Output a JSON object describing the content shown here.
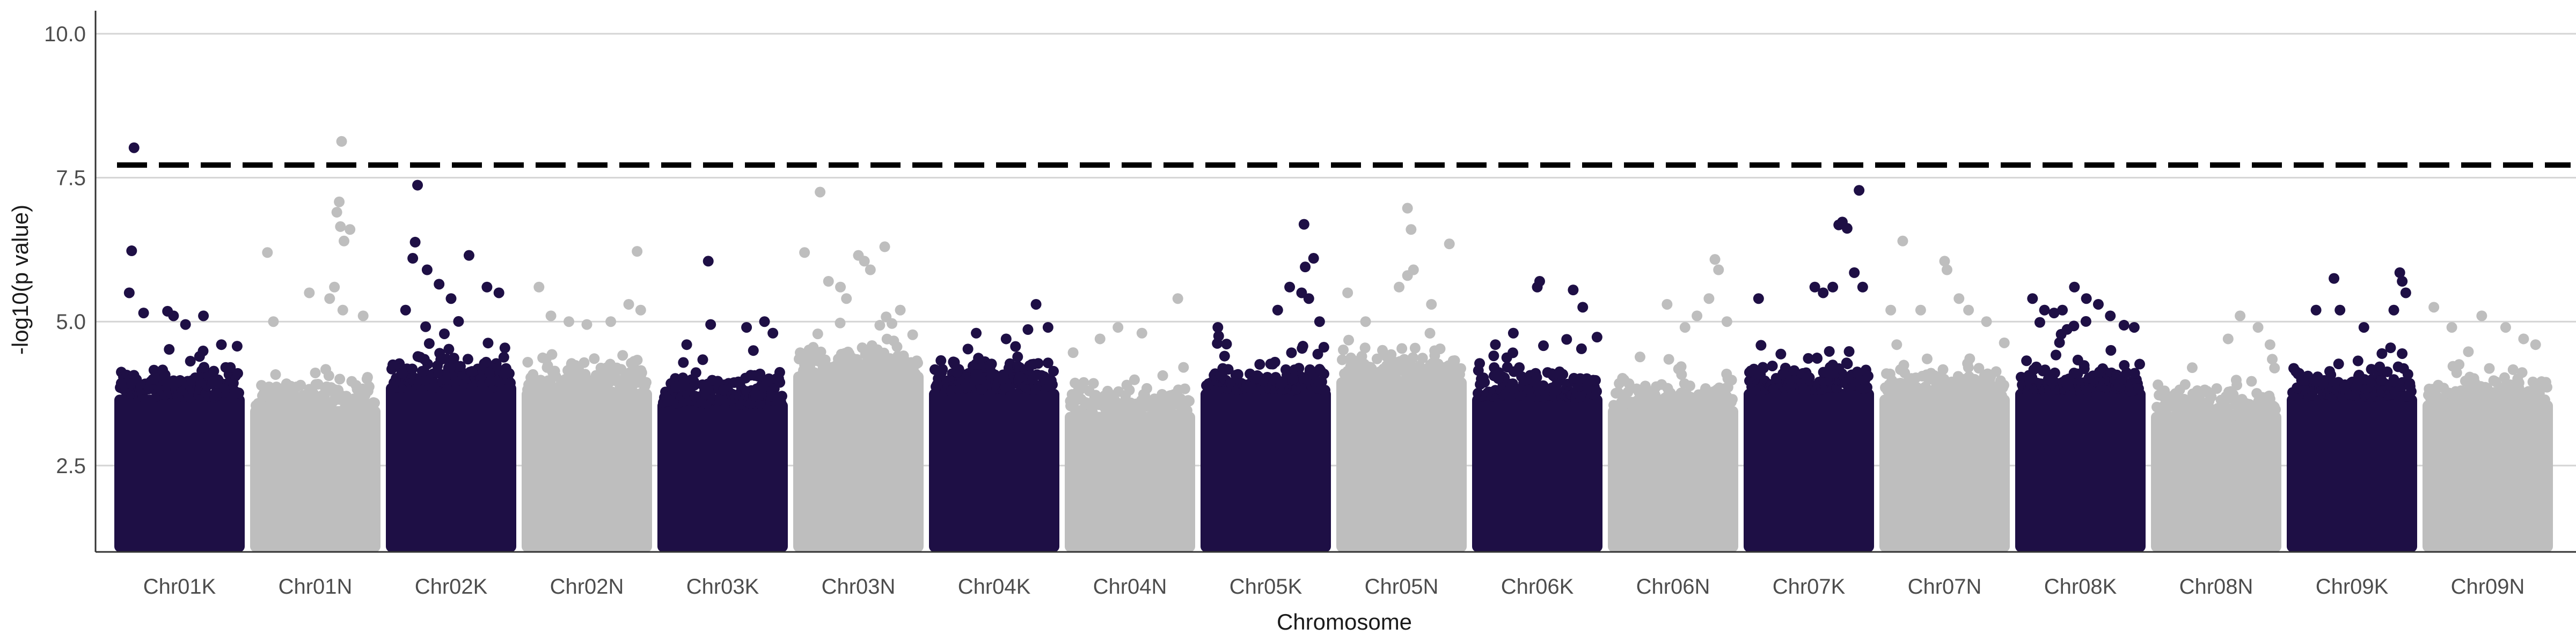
{
  "chart_data": {
    "type": "scatter",
    "subtype": "manhattan",
    "title": "",
    "xlabel": "Chromosome",
    "ylabel": "-log10(p value)",
    "ylim": [
      1.0,
      10.4
    ],
    "yticks": [
      2.5,
      5.0,
      7.5,
      10.0
    ],
    "ytick_labels": [
      "2.5",
      "5.0",
      "7.5",
      "10.0"
    ],
    "grid": "horizontal major lines",
    "legend": "none",
    "threshold": {
      "value": 7.72,
      "style": "dashed",
      "color": "#000000"
    },
    "colors": {
      "odd": "#1e0f45",
      "even": "#bebebe"
    },
    "categories": [
      "Chr01K",
      "Chr01N",
      "Chr02K",
      "Chr02N",
      "Chr03K",
      "Chr03N",
      "Chr04K",
      "Chr04N",
      "Chr05K",
      "Chr05N",
      "Chr06K",
      "Chr06N",
      "Chr07K",
      "Chr07N",
      "Chr08K",
      "Chr08N",
      "Chr09K",
      "Chr09N"
    ],
    "dense_band_top": [
      3.9,
      3.7,
      4.1,
      4.0,
      3.8,
      4.3,
      4.0,
      3.6,
      4.0,
      4.2,
      3.9,
      3.7,
      4.0,
      3.9,
      4.0,
      3.6,
      3.9,
      3.8
    ],
    "series": [
      {
        "name": "Chr01K",
        "points": [
          [
            0.12,
            8.02
          ],
          [
            0.1,
            6.23
          ],
          [
            0.08,
            5.5
          ],
          [
            0.2,
            5.15
          ],
          [
            0.45,
            5.1
          ],
          [
            0.4,
            5.18
          ],
          [
            0.55,
            4.95
          ],
          [
            0.7,
            5.1
          ],
          [
            0.85,
            4.6
          ]
        ]
      },
      {
        "name": "Chr01N",
        "points": [
          [
            0.1,
            6.2
          ],
          [
            0.15,
            5.0
          ],
          [
            0.45,
            5.5
          ],
          [
            0.62,
            5.4
          ],
          [
            0.72,
            8.13
          ],
          [
            0.7,
            7.08
          ],
          [
            0.68,
            6.9
          ],
          [
            0.71,
            6.65
          ],
          [
            0.74,
            6.4
          ],
          [
            0.79,
            6.6
          ],
          [
            0.66,
            5.6
          ],
          [
            0.73,
            5.2
          ],
          [
            0.9,
            5.1
          ]
        ]
      },
      {
        "name": "Chr02K",
        "points": [
          [
            0.22,
            7.37
          ],
          [
            0.2,
            6.38
          ],
          [
            0.18,
            6.1
          ],
          [
            0.3,
            5.9
          ],
          [
            0.4,
            5.65
          ],
          [
            0.65,
            6.15
          ],
          [
            0.8,
            5.6
          ],
          [
            0.9,
            5.5
          ],
          [
            0.5,
            5.4
          ],
          [
            0.12,
            5.2
          ]
        ]
      },
      {
        "name": "Chr02N",
        "points": [
          [
            0.1,
            5.6
          ],
          [
            0.2,
            5.1
          ],
          [
            0.35,
            5.0
          ],
          [
            0.5,
            4.95
          ],
          [
            0.7,
            5.0
          ],
          [
            0.85,
            5.3
          ],
          [
            0.92,
            6.22
          ],
          [
            0.95,
            5.2
          ]
        ]
      },
      {
        "name": "Chr03K",
        "points": [
          [
            0.38,
            6.05
          ],
          [
            0.4,
            4.95
          ],
          [
            0.7,
            4.9
          ],
          [
            0.85,
            5.0
          ],
          [
            0.92,
            4.8
          ],
          [
            0.2,
            4.6
          ]
        ]
      },
      {
        "name": "Chr03N",
        "points": [
          [
            0.05,
            6.2
          ],
          [
            0.18,
            7.25
          ],
          [
            0.25,
            5.7
          ],
          [
            0.35,
            5.6
          ],
          [
            0.5,
            6.15
          ],
          [
            0.55,
            6.05
          ],
          [
            0.6,
            5.9
          ],
          [
            0.72,
            6.3
          ],
          [
            0.85,
            5.2
          ],
          [
            0.4,
            5.4
          ]
        ]
      },
      {
        "name": "Chr04K",
        "points": [
          [
            0.35,
            4.8
          ],
          [
            0.6,
            4.7
          ],
          [
            0.85,
            5.3
          ],
          [
            0.95,
            4.9
          ]
        ]
      },
      {
        "name": "Chr04N",
        "points": [
          [
            0.25,
            4.7
          ],
          [
            0.4,
            4.9
          ],
          [
            0.6,
            4.8
          ],
          [
            0.9,
            5.4
          ]
        ]
      },
      {
        "name": "Chr05K",
        "points": [
          [
            0.1,
            4.9
          ],
          [
            0.6,
            5.2
          ],
          [
            0.7,
            5.6
          ],
          [
            0.8,
            5.5
          ],
          [
            0.82,
            6.69
          ],
          [
            0.83,
            5.95
          ],
          [
            0.86,
            5.4
          ],
          [
            0.9,
            6.1
          ],
          [
            0.95,
            5.0
          ]
        ]
      },
      {
        "name": "Chr05N",
        "points": [
          [
            0.05,
            5.5
          ],
          [
            0.2,
            5.0
          ],
          [
            0.48,
            5.6
          ],
          [
            0.55,
            6.97
          ],
          [
            0.58,
            6.6
          ],
          [
            0.6,
            5.9
          ],
          [
            0.75,
            5.3
          ],
          [
            0.9,
            6.35
          ],
          [
            0.55,
            5.8
          ]
        ]
      },
      {
        "name": "Chr06K",
        "points": [
          [
            0.15,
            4.6
          ],
          [
            0.3,
            4.8
          ],
          [
            0.5,
            5.6
          ],
          [
            0.52,
            5.7
          ],
          [
            0.8,
            5.55
          ],
          [
            0.88,
            5.25
          ]
        ]
      },
      {
        "name": "Chr06N",
        "points": [
          [
            0.45,
            5.3
          ],
          [
            0.6,
            4.9
          ],
          [
            0.7,
            5.1
          ],
          [
            0.8,
            5.4
          ],
          [
            0.85,
            6.08
          ],
          [
            0.88,
            5.9
          ],
          [
            0.95,
            5.0
          ]
        ]
      },
      {
        "name": "Chr07K",
        "points": [
          [
            0.08,
            5.4
          ],
          [
            0.55,
            5.6
          ],
          [
            0.62,
            5.5
          ],
          [
            0.7,
            5.6
          ],
          [
            0.75,
            6.68
          ],
          [
            0.78,
            6.73
          ],
          [
            0.82,
            6.62
          ],
          [
            0.88,
            5.85
          ],
          [
            0.92,
            7.28
          ],
          [
            0.95,
            5.6
          ]
        ]
      },
      {
        "name": "Chr07N",
        "points": [
          [
            0.05,
            5.2
          ],
          [
            0.1,
            4.6
          ],
          [
            0.15,
            6.4
          ],
          [
            0.3,
            5.2
          ],
          [
            0.5,
            6.05
          ],
          [
            0.52,
            5.9
          ],
          [
            0.62,
            5.4
          ],
          [
            0.7,
            5.2
          ],
          [
            0.85,
            5.0
          ]
        ]
      },
      {
        "name": "Chr08K",
        "points": [
          [
            0.1,
            5.4
          ],
          [
            0.2,
            5.2
          ],
          [
            0.28,
            5.15
          ],
          [
            0.35,
            5.2
          ],
          [
            0.45,
            5.6
          ],
          [
            0.55,
            5.4
          ],
          [
            0.65,
            5.3
          ],
          [
            0.75,
            5.1
          ],
          [
            0.95,
            4.9
          ]
        ]
      },
      {
        "name": "Chr08N",
        "points": [
          [
            0.3,
            4.2
          ],
          [
            0.6,
            4.7
          ],
          [
            0.7,
            5.1
          ],
          [
            0.85,
            4.9
          ],
          [
            0.95,
            4.6
          ]
        ]
      },
      {
        "name": "Chr09K",
        "points": [
          [
            0.2,
            5.2
          ],
          [
            0.35,
            5.75
          ],
          [
            0.4,
            5.2
          ],
          [
            0.6,
            4.9
          ],
          [
            0.85,
            5.2
          ],
          [
            0.9,
            5.85
          ],
          [
            0.92,
            5.7
          ],
          [
            0.95,
            5.5
          ]
        ]
      },
      {
        "name": "Chr09N",
        "points": [
          [
            0.05,
            5.25
          ],
          [
            0.2,
            4.9
          ],
          [
            0.45,
            5.1
          ],
          [
            0.65,
            4.9
          ],
          [
            0.8,
            4.7
          ],
          [
            0.9,
            4.6
          ]
        ]
      }
    ]
  }
}
